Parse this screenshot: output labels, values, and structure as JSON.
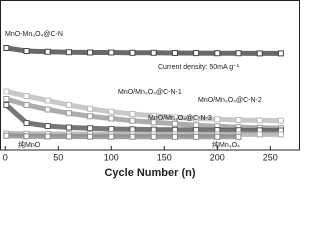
{
  "chart_data": {
    "type": "line",
    "x_label": "Cycle Number (n)",
    "x": [
      1,
      20,
      40,
      60,
      80,
      100,
      120,
      140,
      160,
      180,
      200,
      220,
      240,
      260
    ],
    "series": [
      {
        "name": "MnO-Mn₃O₄@C-N",
        "color": "#444444",
        "values": [
          680,
          660,
          655,
          652,
          650,
          650,
          648,
          648,
          647,
          646,
          645,
          645,
          644,
          644
        ]
      },
      {
        "name": "MnO/Mn₃O₄@C-N-1",
        "color": "#bbbbbb",
        "values": [
          390,
          360,
          330,
          300,
          275,
          255,
          240,
          228,
          218,
          210,
          205,
          200,
          198,
          196
        ]
      },
      {
        "name": "MnO/Mn₃O₄@C-N-2",
        "color": "#999999",
        "values": [
          340,
          300,
          270,
          245,
          225,
          210,
          195,
          185,
          175,
          165,
          158,
          152,
          148,
          145
        ]
      },
      {
        "name": "MnO/Mn₃O₄@C-N-3",
        "color": "#555555",
        "values": [
          300,
          180,
          160,
          150,
          145,
          140,
          138,
          136,
          135,
          134,
          133,
          132,
          131,
          130
        ]
      },
      {
        "name": "纯MnO",
        "color": "#aaaaaa",
        "values": [
          110,
          108,
          107,
          106,
          106,
          105,
          105,
          105,
          105,
          104,
          104,
          104,
          104,
          104
        ]
      },
      {
        "name": "纯Mn₃O₄",
        "color": "#888888",
        "values": [
          95,
          92,
          90,
          90,
          89,
          89,
          88,
          88,
          88,
          88,
          88,
          88,
          null,
          null
        ]
      }
    ],
    "annotation": "Current density: 50mA g⁻¹",
    "xlim": [
      -5,
      278
    ],
    "xticks": [
      0,
      50,
      100,
      150,
      200,
      250
    ],
    "ylim": [
      0,
      1000
    ]
  }
}
